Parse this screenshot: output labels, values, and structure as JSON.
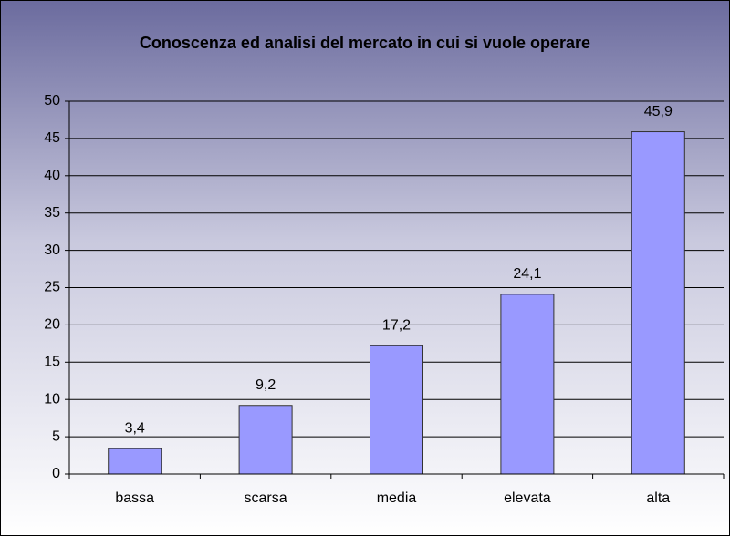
{
  "chart_data": {
    "type": "bar",
    "title": "Conoscenza ed analisi del mercato in cui si vuole operare",
    "categories": [
      "bassa",
      "scarsa",
      "media",
      "elevata",
      "alta"
    ],
    "values": [
      3.4,
      9.2,
      17.2,
      24.1,
      45.9
    ],
    "value_labels": [
      "3,4",
      "9,2",
      "17,2",
      "24,1",
      "45,9"
    ],
    "color": "#9999ff",
    "ylim": [
      0,
      50
    ],
    "yticks": [
      0,
      5,
      10,
      15,
      20,
      25,
      30,
      35,
      40,
      45,
      50
    ],
    "grid": true
  }
}
